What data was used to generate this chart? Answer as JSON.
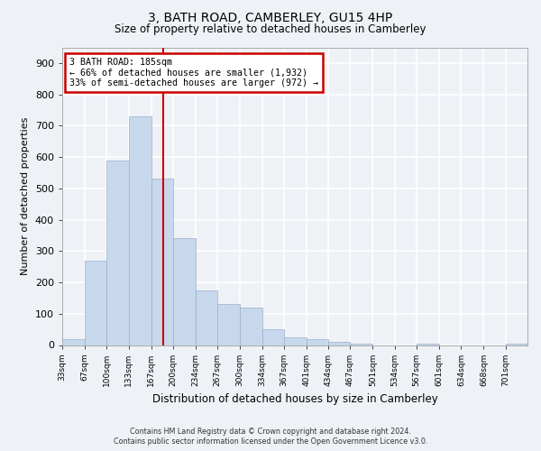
{
  "title": "3, BATH ROAD, CAMBERLEY, GU15 4HP",
  "subtitle": "Size of property relative to detached houses in Camberley",
  "xlabel": "Distribution of detached houses by size in Camberley",
  "ylabel": "Number of detached properties",
  "bar_labels": [
    "33sqm",
    "67sqm",
    "100sqm",
    "133sqm",
    "167sqm",
    "200sqm",
    "234sqm",
    "267sqm",
    "300sqm",
    "334sqm",
    "367sqm",
    "401sqm",
    "434sqm",
    "467sqm",
    "501sqm",
    "534sqm",
    "567sqm",
    "601sqm",
    "634sqm",
    "668sqm",
    "701sqm"
  ],
  "bar_values": [
    20,
    270,
    590,
    730,
    530,
    340,
    175,
    130,
    120,
    50,
    25,
    20,
    10,
    5,
    0,
    0,
    5,
    0,
    0,
    0,
    5
  ],
  "bar_color": "#c8d8ec",
  "bar_edge_color": "#9ab0c8",
  "property_line_x": 185,
  "left_edges": [
    33,
    67,
    100,
    133,
    167,
    200,
    234,
    267,
    300,
    334,
    367,
    401,
    434,
    467,
    501,
    534,
    567,
    601,
    634,
    668,
    701
  ],
  "annotation_text": "3 BATH ROAD: 185sqm\n← 66% of detached houses are smaller (1,932)\n33% of semi-detached houses are larger (972) →",
  "annotation_box_color": "#ffffff",
  "annotation_box_edge": "#cc0000",
  "red_line_color": "#cc0000",
  "footer_line1": "Contains HM Land Registry data © Crown copyright and database right 2024.",
  "footer_line2": "Contains public sector information licensed under the Open Government Licence v3.0.",
  "bg_color": "#eef2f7",
  "plot_bg_color": "#eef2f7",
  "grid_color": "#ffffff",
  "ylim": [
    0,
    950
  ],
  "yticks": [
    0,
    100,
    200,
    300,
    400,
    500,
    600,
    700,
    800,
    900
  ]
}
